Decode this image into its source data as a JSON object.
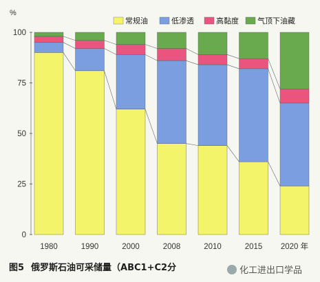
{
  "chart_data": {
    "type": "bar",
    "stacked": true,
    "unit_label": "%",
    "categories": [
      "1980",
      "1990",
      "2000",
      "2008",
      "2010",
      "2015",
      "2020 年"
    ],
    "series": [
      {
        "name": "常规油",
        "color": "#f4f46a",
        "values": [
          90,
          81,
          62,
          45,
          44,
          36,
          24
        ]
      },
      {
        "name": "低渗透",
        "color": "#7b9ee0",
        "values": [
          5,
          11,
          27,
          41,
          40,
          46,
          41
        ]
      },
      {
        "name": "高黏度",
        "color": "#e9557f",
        "values": [
          3,
          4,
          5,
          6,
          5,
          5,
          7
        ]
      },
      {
        "name": "气顶下油藏",
        "color": "#6aaa4e",
        "values": [
          2,
          4,
          6,
          8,
          11,
          13,
          28
        ]
      }
    ],
    "yticks": [
      0,
      25,
      50,
      75,
      100
    ],
    "ylim": [
      0,
      100
    ],
    "legend_position": "top",
    "grid": false
  },
  "caption": {
    "figure_no": "图5",
    "title": "俄罗斯石油可采储量（ABC1+C2分"
  },
  "watermark": "化工进出口学品"
}
